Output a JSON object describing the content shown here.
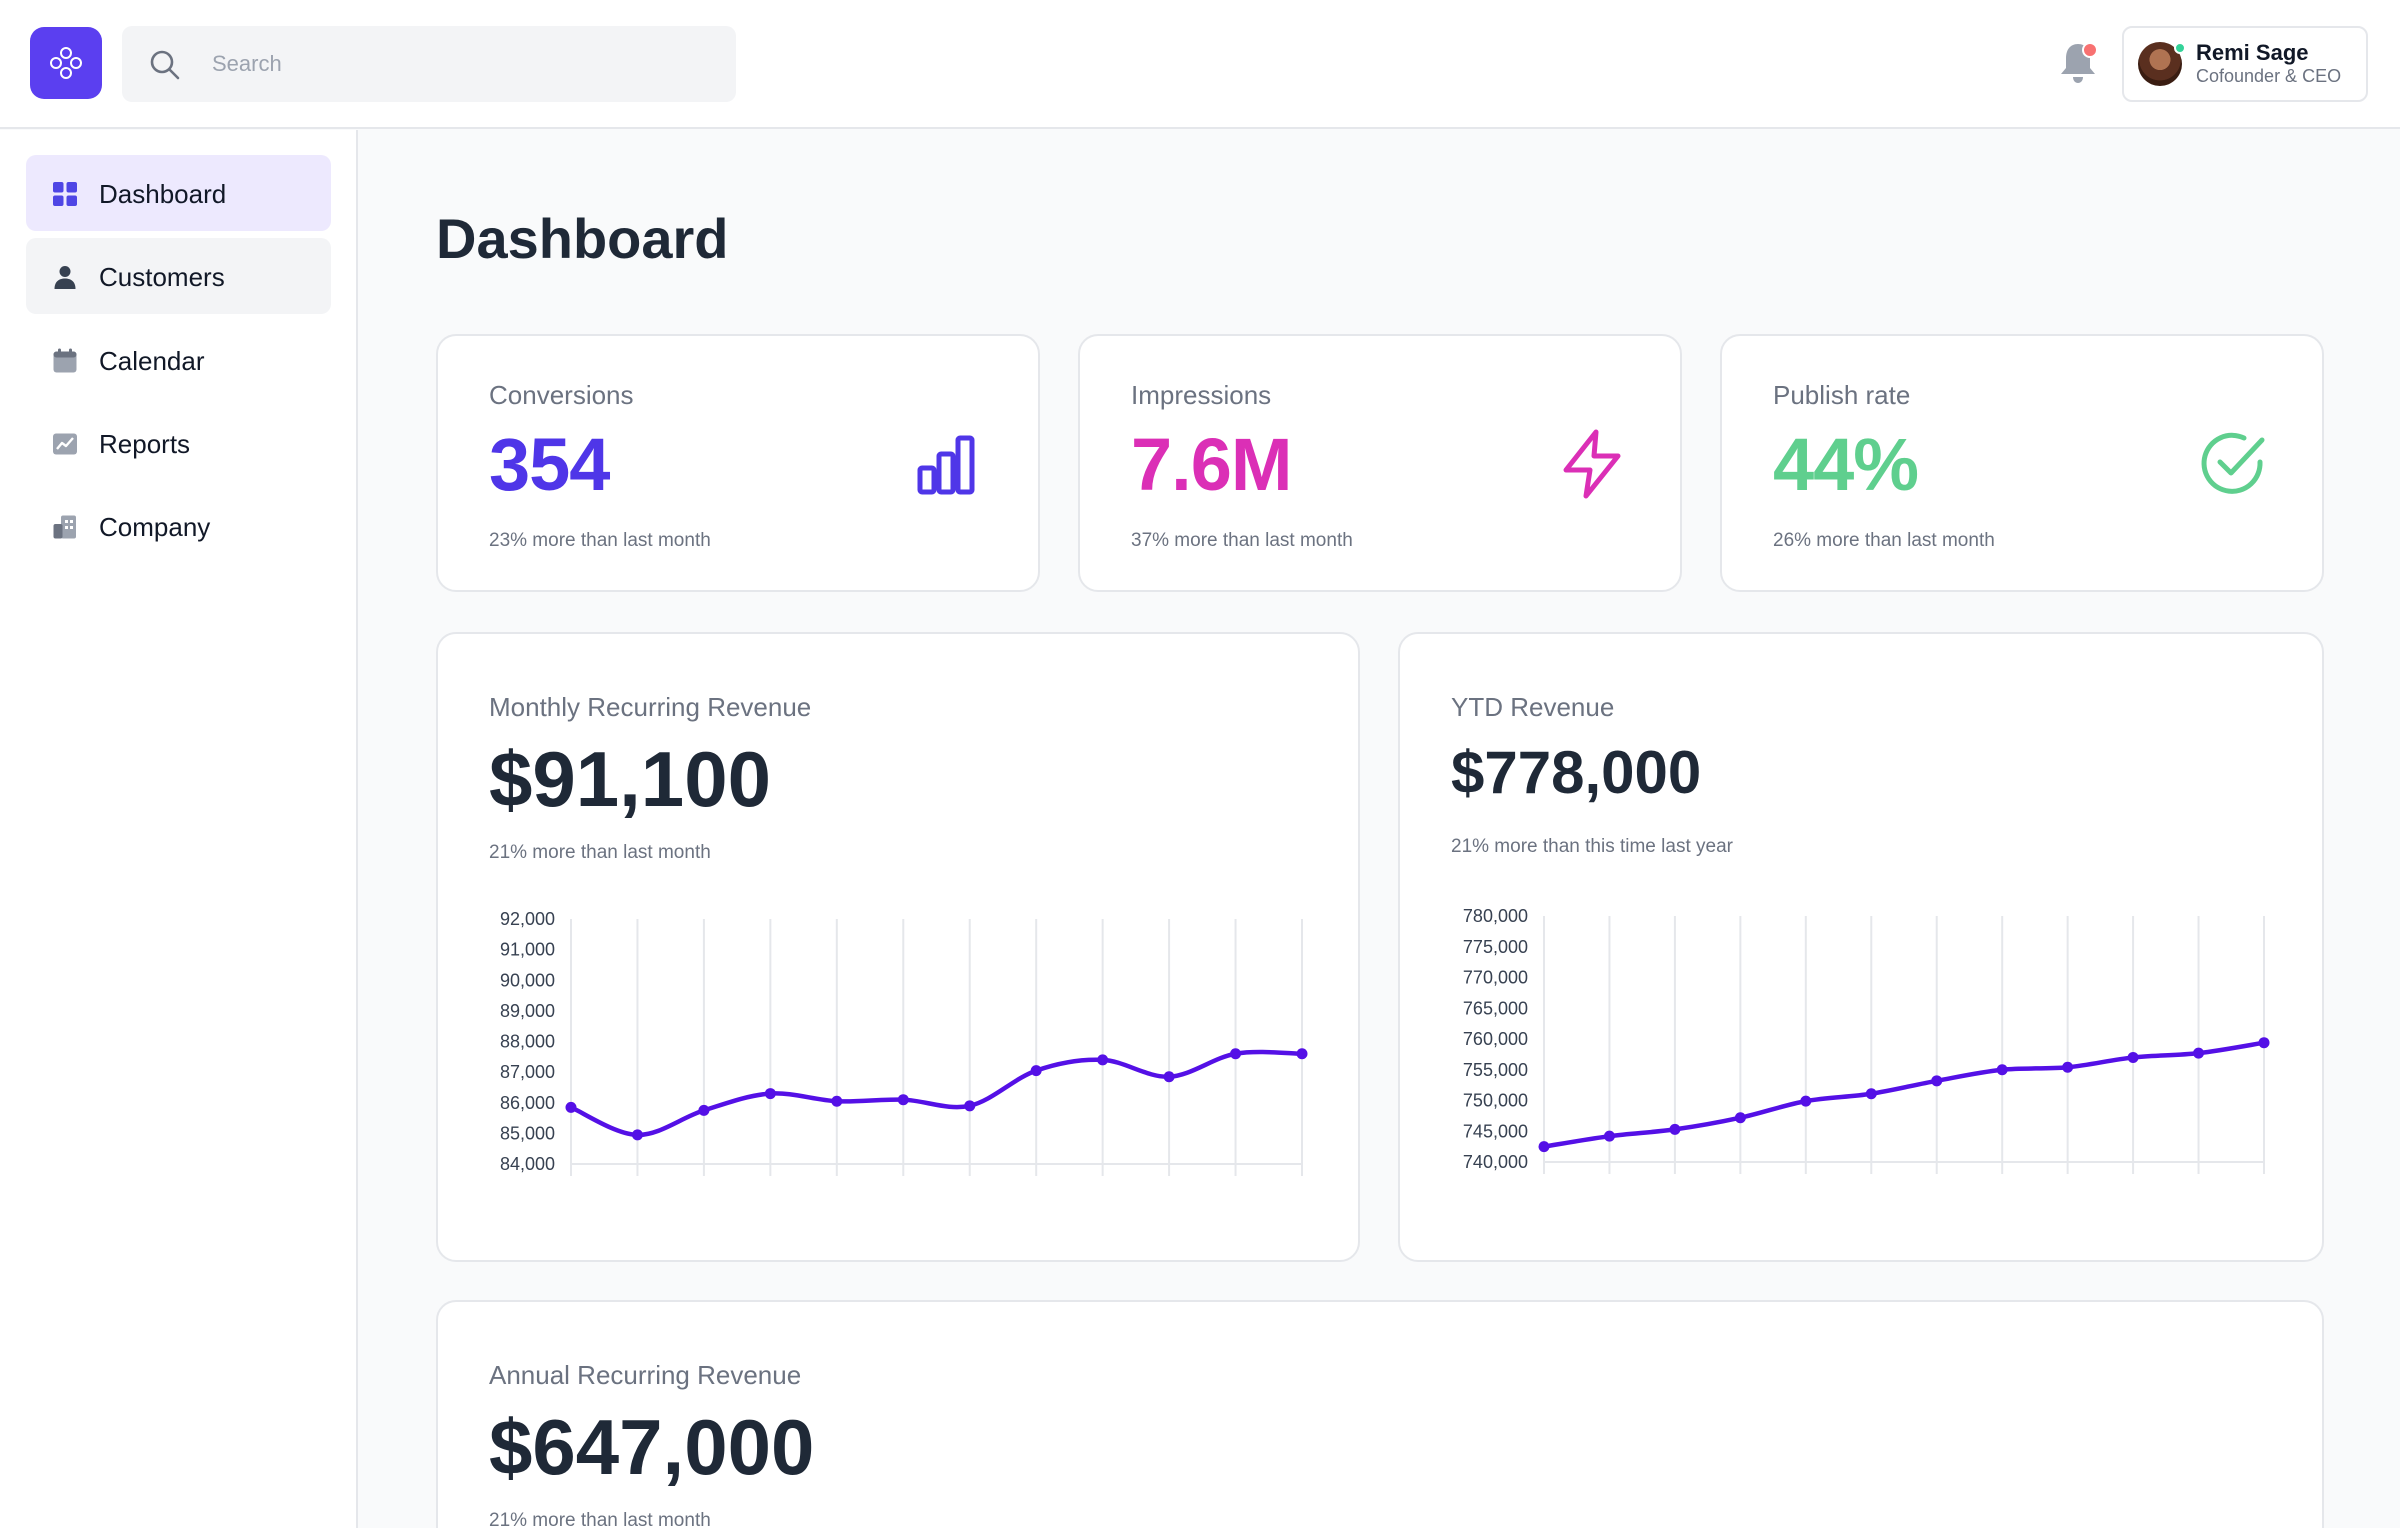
{
  "header": {
    "search": {
      "placeholder": "Search",
      "value": ""
    },
    "notifications": {
      "has_unread": true
    },
    "user": {
      "name": "Remi Sage",
      "role": "Cofounder & CEO"
    }
  },
  "sidebar": {
    "items": [
      {
        "label": "Dashboard",
        "icon": "grid-icon",
        "active": true
      },
      {
        "label": "Customers",
        "icon": "user-icon",
        "active": false
      },
      {
        "label": "Calendar",
        "icon": "calendar-icon",
        "active": false
      },
      {
        "label": "Reports",
        "icon": "chart-image-icon",
        "active": false
      },
      {
        "label": "Company",
        "icon": "building-icon",
        "active": false
      }
    ]
  },
  "main": {
    "title": "Dashboard",
    "stats": [
      {
        "label": "Conversions",
        "value": "354",
        "sub": "23% more than last month",
        "color": "#4f36e8",
        "icon": "bar-chart-icon"
      },
      {
        "label": "Impressions",
        "value": "7.6M",
        "sub": "37% more than last month",
        "color": "#db2fb6",
        "icon": "lightning-icon"
      },
      {
        "label": "Publish rate",
        "value": "44%",
        "sub": "26% more than last month",
        "color": "#5fcf8e",
        "icon": "check-circle-icon"
      }
    ],
    "mrr": {
      "label": "Monthly Recurring Revenue",
      "value": "$91,100",
      "sub": "21% more than last month"
    },
    "ytd": {
      "label": "YTD Revenue",
      "value": "$778,000",
      "sub": "21% more than this time last year"
    },
    "arr": {
      "label": "Annual Recurring Revenue",
      "value": "$647,000",
      "sub": "21% more than last month"
    }
  },
  "colors": {
    "accent": "#5b3ff0",
    "line": "#5410e6"
  },
  "chart_data": [
    {
      "type": "line",
      "title": "Monthly Recurring Revenue",
      "x": [
        1,
        2,
        3,
        4,
        5,
        6,
        7,
        8,
        9,
        10,
        11,
        12
      ],
      "values": [
        85850,
        84950,
        85750,
        86300,
        86050,
        86100,
        85900,
        87050,
        87400,
        86850,
        87600,
        87600
      ],
      "ylim": [
        84000,
        92000
      ],
      "yticks": [
        "92,000",
        "91,000",
        "90,000",
        "89,000",
        "88,000",
        "87,000",
        "86,000",
        "85,000",
        "84,000"
      ],
      "grid": "vertical",
      "xlabel": "",
      "ylabel": ""
    },
    {
      "type": "line",
      "title": "YTD Revenue",
      "x": [
        1,
        2,
        3,
        4,
        5,
        6,
        7,
        8,
        9,
        10,
        11,
        12
      ],
      "values": [
        742500,
        744200,
        745300,
        747200,
        749900,
        751100,
        753200,
        755000,
        755400,
        757000,
        757700,
        759400
      ],
      "ylim": [
        740000,
        780000
      ],
      "yticks": [
        "780,000",
        "775,000",
        "770,000",
        "765,000",
        "760,000",
        "755,000",
        "750,000",
        "745,000",
        "740,000"
      ],
      "grid": "vertical",
      "xlabel": "",
      "ylabel": ""
    }
  ]
}
